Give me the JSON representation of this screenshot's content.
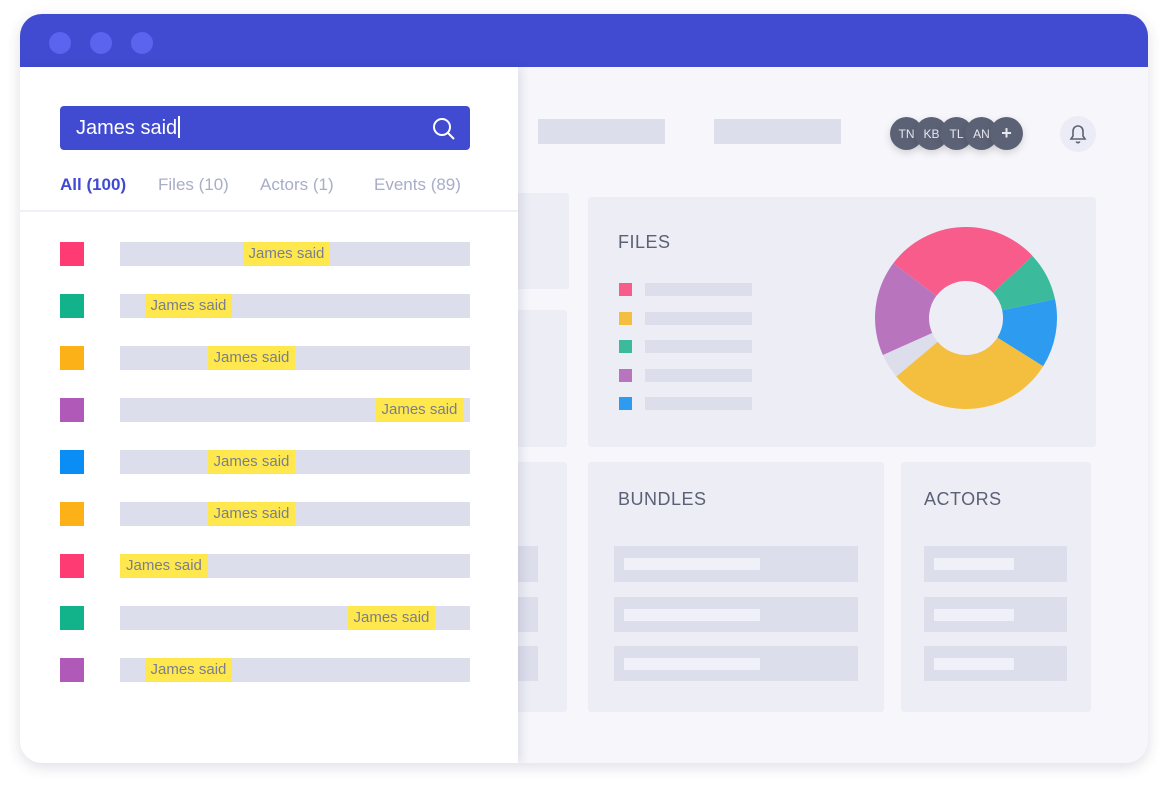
{
  "window": {
    "traffic_lights": 3
  },
  "search": {
    "value": "James said",
    "icon": "search-icon"
  },
  "tabs": [
    {
      "label": "All (100)",
      "active": true
    },
    {
      "label": "Files (10)",
      "active": false
    },
    {
      "label": "Actors (1)",
      "active": false
    },
    {
      "label": "Events (89)",
      "active": false
    }
  ],
  "results": [
    {
      "color": "#ff3b73",
      "match": "James said",
      "match_position": 0.35
    },
    {
      "color": "#12b28a",
      "match": "James said",
      "match_position": 0.07
    },
    {
      "color": "#fbb117",
      "match": "James said",
      "match_position": 0.25
    },
    {
      "color": "#b059b9",
      "match": "James said",
      "match_position": 0.73
    },
    {
      "color": "#0a8ef6",
      "match": "James said",
      "match_position": 0.25
    },
    {
      "color": "#fbb117",
      "match": "James said",
      "match_position": 0.25
    },
    {
      "color": "#ff3b73",
      "match": "James said",
      "match_position": 0.0
    },
    {
      "color": "#12b28a",
      "match": "James said",
      "match_position": 0.65
    },
    {
      "color": "#b059b9",
      "match": "James said",
      "match_position": 0.07
    }
  ],
  "header": {
    "avatars": [
      "TN",
      "KB",
      "TL",
      "AN"
    ],
    "add_label": "+",
    "bell_icon": "bell-icon"
  },
  "files": {
    "title": "FILES",
    "legend_colors": [
      "#f75c8a",
      "#f4bf3e",
      "#3bbb9c",
      "#b974be",
      "#2d9bef"
    ],
    "donut": [
      {
        "color": "#f75c8a",
        "value": 100
      },
      {
        "color": "#3bbb9c",
        "value": 31
      },
      {
        "color": "#2d9bef",
        "value": 44
      },
      {
        "color": "#f4bf3e",
        "value": 108
      },
      {
        "color": "#dcdeec",
        "value": 16
      },
      {
        "color": "#b974be",
        "value": 61
      }
    ]
  },
  "bundles": {
    "title": "BUNDLES"
  },
  "actors": {
    "title": "ACTORS"
  }
}
